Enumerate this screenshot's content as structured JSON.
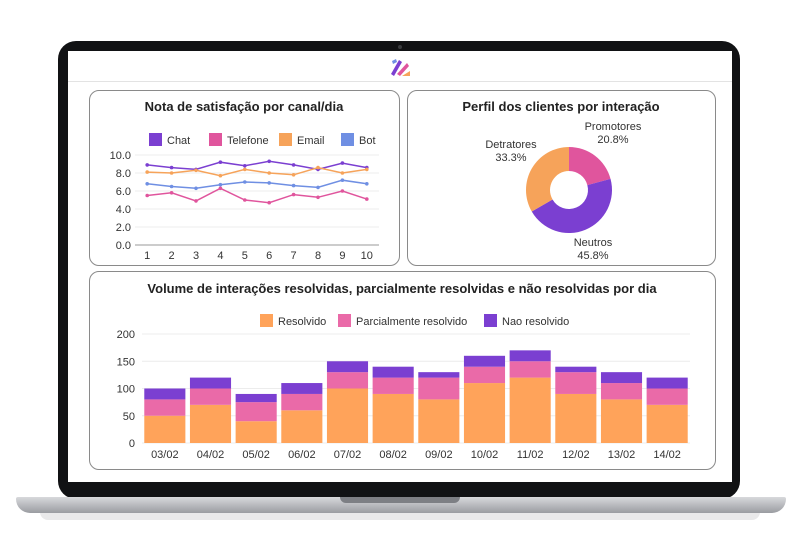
{
  "colors": {
    "chat": "#7b3fd1",
    "telefone": "#e0559d",
    "email": "#f6a35a",
    "bot": "#6f8fe3",
    "resolvido": "#ffa35a",
    "parcial": "#ea6aa8",
    "nao": "#7b3fd1"
  },
  "chart_data": [
    {
      "type": "line",
      "title": "Nota de satisfação por canal/dia",
      "x": [
        1,
        2,
        3,
        4,
        5,
        6,
        7,
        8,
        9,
        10
      ],
      "ylim": [
        0,
        10
      ],
      "yticks": [
        "0.0",
        "2.0",
        "4.0",
        "6.0",
        "8.0",
        "10.0"
      ],
      "legend_position": "top",
      "series": [
        {
          "name": "Chat",
          "values": [
            8.9,
            8.6,
            8.4,
            9.2,
            8.8,
            9.3,
            8.9,
            8.4,
            9.1,
            8.6
          ]
        },
        {
          "name": "Telefone",
          "values": [
            5.5,
            5.8,
            4.9,
            6.3,
            5.0,
            4.7,
            5.6,
            5.3,
            6.0,
            5.1
          ]
        },
        {
          "name": "Email",
          "values": [
            8.1,
            8.0,
            8.3,
            7.7,
            8.4,
            8.0,
            7.8,
            8.6,
            8.0,
            8.4
          ]
        },
        {
          "name": "Bot",
          "values": [
            6.8,
            6.5,
            6.3,
            6.7,
            7.0,
            6.9,
            6.6,
            6.4,
            7.2,
            6.8
          ]
        }
      ]
    },
    {
      "type": "pie",
      "title": "Perfil dos clientes por interação",
      "slices": [
        {
          "name": "Promotores",
          "value": 20.8,
          "label": "20.8%"
        },
        {
          "name": "Neutros",
          "value": 45.8,
          "label": "45.8%"
        },
        {
          "name": "Detratores",
          "value": 33.3,
          "label": "33.3%"
        }
      ]
    },
    {
      "type": "bar",
      "stacked": true,
      "title": "Volume de interações resolvidas, parcialmente resolvidas e não resolvidas por dia",
      "categories": [
        "03/02",
        "04/02",
        "05/02",
        "06/02",
        "07/02",
        "08/02",
        "09/02",
        "10/02",
        "11/02",
        "12/02",
        "13/02",
        "14/02"
      ],
      "ylim": [
        0,
        200
      ],
      "yticks": [
        "0",
        "50",
        "100",
        "150",
        "200"
      ],
      "legend_position": "top",
      "series": [
        {
          "name": "Resolvido",
          "values": [
            50,
            70,
            40,
            60,
            100,
            90,
            80,
            110,
            120,
            90,
            80,
            70
          ]
        },
        {
          "name": "Parcialmente resolvido",
          "values": [
            30,
            30,
            35,
            30,
            30,
            30,
            40,
            30,
            30,
            40,
            30,
            30
          ]
        },
        {
          "name": "Nao resolvido",
          "values": [
            20,
            20,
            15,
            20,
            20,
            20,
            10,
            20,
            20,
            10,
            20,
            20
          ]
        }
      ]
    }
  ]
}
